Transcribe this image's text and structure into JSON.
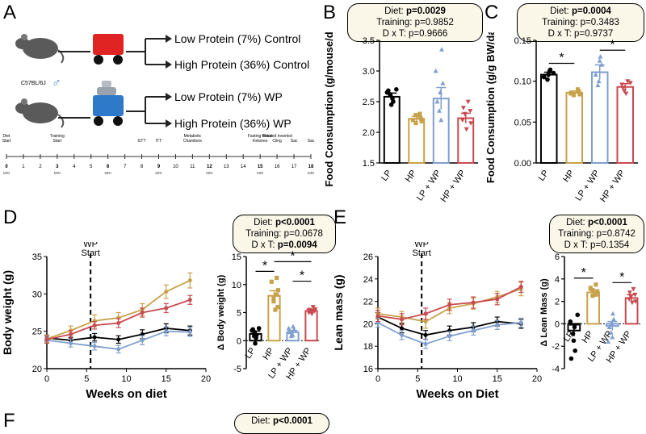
{
  "panels": {
    "A": "A",
    "B": "B",
    "C": "C",
    "D": "D",
    "E": "E",
    "F": "F"
  },
  "schematic": {
    "strain": "C57BL/6J",
    "sex_symbol": "♂",
    "groups": [
      "Low Protein (7%) Control",
      "High Protein (36%) Control",
      "Low Protein (7%) WP",
      "High Protein (36%) WP"
    ],
    "timeline_events": [
      {
        "week": "0",
        "label": "Diet Start"
      },
      {
        "week": "3",
        "label": "Training Start"
      },
      {
        "week": "8",
        "label": "GTT"
      },
      {
        "week": "9",
        "label": "ITT"
      },
      {
        "week": "11",
        "label": "Metabolic Chambers"
      },
      {
        "week": "15",
        "label": "Fasting Blood, Ketones"
      },
      {
        "week": "16",
        "label": "Rotarod, Inverted Cling"
      },
      {
        "week": "17",
        "label": "Sac"
      },
      {
        "week": "18",
        "label": "Sac"
      }
    ],
    "timeline_weeks": [
      "0",
      "1",
      "2",
      "3",
      "4",
      "5",
      "6",
      "7",
      "8",
      "9",
      "10",
      "11",
      "12",
      "13",
      "14",
      "15",
      "16",
      "17",
      "18"
    ],
    "mri_label": "MRI",
    "mri_weeks": [
      "0",
      "3",
      "6",
      "9",
      "12",
      "15",
      "18"
    ]
  },
  "stats": {
    "B": {
      "diet_label": "Diet:",
      "diet": "p=0.0029",
      "training": "Training: p=0.9852",
      "dxt": "D x T: p=0.9666"
    },
    "C": {
      "diet_label": "Diet:",
      "diet": "p=0.0004",
      "training": "Training: p=0.3483",
      "dxt": "D x T: p=0.9737"
    },
    "D": {
      "diet_label": "Diet:",
      "diet": "p<0.0001",
      "training": "Training: p=0.0678",
      "dxt_label": "D x T:",
      "dxt": "p=0.0094"
    },
    "E": {
      "diet_label": "Diet:",
      "diet": "p<0.0001",
      "training": "Training: p=0.8742",
      "dxt": "D x T: p=0.1354"
    },
    "F": {
      "diet_label": "Diet:",
      "diet": "p<0.0001"
    }
  },
  "colors": {
    "LP": "#000000",
    "HP": "#c8a24a",
    "LP+WP": "#7f9fcf",
    "HP+WP": "#c84a50"
  },
  "chart_data": [
    {
      "id": "B",
      "type": "bar",
      "ylabel": "Food Consumption (g/mouse/day)",
      "categories": [
        "LP",
        "HP",
        "LP + WP",
        "HP + WP"
      ],
      "values": [
        2.58,
        2.22,
        2.55,
        2.23
      ],
      "errors": [
        0.06,
        0.04,
        0.18,
        0.08
      ],
      "ylim": [
        1.5,
        3.5
      ],
      "yticks": [
        "1.5",
        "2.0",
        "2.5",
        "3.0",
        "3.5"
      ],
      "points": [
        [
          2.7,
          2.65,
          2.55,
          2.6,
          2.45,
          2.5,
          2.68,
          2.62
        ],
        [
          2.25,
          2.2,
          2.18,
          2.3,
          2.15,
          2.22,
          2.28
        ],
        [
          3.35,
          2.8,
          2.65,
          2.5,
          2.35,
          2.2,
          3.0
        ],
        [
          2.5,
          2.4,
          2.3,
          2.2,
          2.05,
          2.15,
          2.35
        ]
      ]
    },
    {
      "id": "C",
      "type": "bar",
      "ylabel": "Food Consumption (g/g BW/day)",
      "categories": [
        "LP",
        "HP",
        "LP + WP",
        "HP + WP"
      ],
      "values": [
        0.108,
        0.086,
        0.111,
        0.093
      ],
      "errors": [
        0.003,
        0.002,
        0.009,
        0.004
      ],
      "ylim": [
        0,
        0.15
      ],
      "yticks": [
        "0.00",
        "0.05",
        "0.10",
        "0.15"
      ],
      "points": [
        [
          0.11,
          0.105,
          0.112,
          0.102,
          0.108,
          0.114
        ],
        [
          0.088,
          0.085,
          0.084,
          0.09,
          0.083,
          0.087
        ],
        [
          0.13,
          0.12,
          0.1,
          0.108,
          0.095,
          0.125
        ],
        [
          0.1,
          0.092,
          0.088,
          0.096,
          0.085,
          0.098
        ]
      ],
      "sig": [
        {
          "from": 0,
          "to": 1,
          "label": "*"
        },
        {
          "from": 2,
          "to": 3,
          "label": "*"
        }
      ]
    },
    {
      "id": "D-line",
      "type": "line",
      "xlabel": "Weeks on diet",
      "ylabel": "Body weight (g)",
      "xlim": [
        0,
        20
      ],
      "ylim": [
        20,
        35
      ],
      "xticks": [
        "0",
        "5",
        "10",
        "15",
        "20"
      ],
      "yticks": [
        "20",
        "25",
        "30",
        "35"
      ],
      "vline": {
        "x": 5.5,
        "label": "WP Start"
      },
      "x": [
        0,
        3,
        6,
        9,
        12,
        15,
        18
      ],
      "series": [
        {
          "name": "LP",
          "values": [
            24.1,
            23.8,
            24.2,
            23.9,
            24.6,
            25.4,
            25.1
          ],
          "err": [
            0.4,
            0.4,
            0.5,
            0.5,
            0.6,
            0.6,
            0.6
          ]
        },
        {
          "name": "HP",
          "values": [
            24.0,
            25.1,
            26.4,
            26.8,
            27.9,
            30.3,
            31.8
          ],
          "err": [
            0.5,
            0.6,
            0.8,
            0.7,
            0.8,
            0.9,
            1.0
          ]
        },
        {
          "name": "LP + WP",
          "values": [
            23.8,
            23.4,
            23.0,
            22.6,
            23.8,
            25.0,
            24.9
          ],
          "err": [
            0.4,
            0.5,
            0.5,
            0.5,
            0.6,
            0.6,
            0.6
          ]
        },
        {
          "name": "HP + WP",
          "values": [
            23.9,
            24.6,
            25.8,
            26.1,
            27.5,
            28.1,
            29.2
          ],
          "err": [
            0.5,
            0.5,
            0.5,
            0.6,
            0.6,
            0.6,
            0.6
          ]
        }
      ]
    },
    {
      "id": "D-bar",
      "type": "bar",
      "ylabel": "Δ Body weight (g)",
      "categories": [
        "LP",
        "HP",
        "LP + WP",
        "HP + WP"
      ],
      "values": [
        1.2,
        8.0,
        1.5,
        5.3
      ],
      "errors": [
        0.5,
        0.9,
        0.3,
        0.3
      ],
      "ylim": [
        -5,
        15
      ],
      "yticks": [
        "-5",
        "0",
        "5",
        "10",
        "15"
      ],
      "points": [
        [
          2.2,
          1.8,
          0.5,
          1.5,
          -0.5,
          1.0,
          2.0,
          0.8
        ],
        [
          11.2,
          10.5,
          9.0,
          8.2,
          7.0,
          6.0,
          7.5,
          5.5
        ],
        [
          2.5,
          2.0,
          1.2,
          1.5,
          0.8,
          1.0,
          2.2
        ],
        [
          6.0,
          5.5,
          5.2,
          5.0,
          4.8,
          5.6,
          5.3
        ]
      ],
      "sig": [
        {
          "from": 0,
          "to": 1,
          "label": "*"
        },
        {
          "from": 1,
          "to": 3,
          "label": "*"
        },
        {
          "from": 2,
          "to": 3,
          "label": "*"
        }
      ]
    },
    {
      "id": "E-line",
      "type": "line",
      "xlabel": "Weeks on Diet",
      "ylabel": "Lean mass (g)",
      "xlim": [
        0,
        20
      ],
      "ylim": [
        16,
        26
      ],
      "xticks": [
        "0",
        "5",
        "10",
        "15",
        "20"
      ],
      "yticks": [
        "16",
        "18",
        "20",
        "22",
        "24",
        "26"
      ],
      "vline": {
        "x": 5.5,
        "label": "WP Start"
      },
      "x": [
        0,
        3,
        6,
        9,
        12,
        15,
        18
      ],
      "series": [
        {
          "name": "LP",
          "values": [
            20.6,
            19.6,
            19.0,
            19.4,
            19.7,
            20.2,
            20.0
          ],
          "err": [
            0.4,
            0.4,
            0.4,
            0.4,
            0.4,
            0.4,
            0.4
          ]
        },
        {
          "name": "HP",
          "values": [
            20.9,
            20.6,
            20.2,
            21.4,
            21.8,
            22.4,
            23.1
          ],
          "err": [
            0.5,
            0.5,
            0.6,
            0.5,
            0.5,
            0.5,
            0.6
          ]
        },
        {
          "name": "LP + WP",
          "values": [
            20.1,
            19.0,
            18.2,
            18.9,
            19.4,
            19.9,
            20.1
          ],
          "err": [
            0.4,
            0.4,
            0.4,
            0.4,
            0.4,
            0.4,
            0.4
          ]
        },
        {
          "name": "HP + WP",
          "values": [
            20.7,
            20.4,
            20.9,
            21.7,
            21.9,
            22.2,
            23.3
          ],
          "err": [
            0.5,
            0.5,
            0.5,
            0.5,
            0.5,
            0.5,
            0.5
          ]
        }
      ]
    },
    {
      "id": "E-bar",
      "type": "bar",
      "ylabel": "Δ Lean Mass (g)",
      "categories": [
        "LP",
        "HP",
        "LP + WP",
        "HP + WP"
      ],
      "values": [
        -0.6,
        2.8,
        -0.2,
        2.3
      ],
      "errors": [
        0.5,
        0.2,
        0.4,
        0.3
      ],
      "ylim": [
        -4,
        6
      ],
      "yticks": [
        "-4",
        "-2",
        "0",
        "2",
        "4",
        "6"
      ],
      "points": [
        [
          0.8,
          0.2,
          -0.3,
          -0.9,
          -1.5,
          -2.4,
          -3.1
        ],
        [
          3.5,
          3.2,
          2.9,
          2.6,
          2.5,
          2.7,
          3.0
        ],
        [
          0.9,
          0.4,
          0.0,
          -0.3,
          -0.8,
          -1.2,
          -1.6
        ],
        [
          3.1,
          2.8,
          2.4,
          2.2,
          1.9,
          2.0,
          2.6
        ]
      ],
      "sig": [
        {
          "from": 0,
          "to": 1,
          "label": "*"
        },
        {
          "from": 2,
          "to": 3,
          "label": "*"
        }
      ]
    }
  ]
}
